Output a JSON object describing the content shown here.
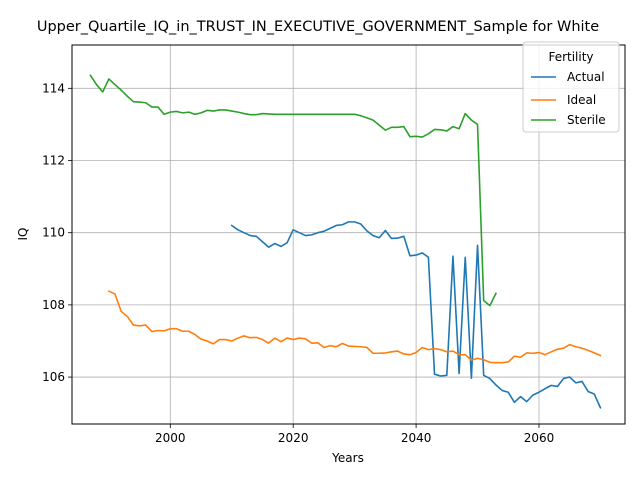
{
  "chart_data": {
    "type": "line",
    "title": "Upper_Quartile_IQ_in_TRUST_IN_EXECUTIVE_GOVERNMENT_Sample for White",
    "xlabel": "Years",
    "ylabel": "IQ",
    "xlim": [
      1984,
      2074
    ],
    "ylim": [
      104.7,
      115.2
    ],
    "xticks": [
      2000,
      2020,
      2040,
      2060
    ],
    "xtick_labels": [
      "2000",
      "2020",
      "2040",
      "2060"
    ],
    "yticks": [
      106,
      108,
      110,
      112,
      114
    ],
    "ytick_labels": [
      "106",
      "108",
      "110",
      "112",
      "114"
    ],
    "grid": true,
    "legend": {
      "title": "Fertility",
      "placement": "top-right",
      "entries": [
        "Actual",
        "Ideal",
        "Sterile"
      ]
    },
    "series": [
      {
        "name": "Actual",
        "color": "#1f77b4",
        "x": [
          2010,
          2011,
          2012,
          2013,
          2014,
          2015,
          2016,
          2017,
          2018,
          2019,
          2020,
          2021,
          2022,
          2023,
          2024,
          2025,
          2026,
          2027,
          2028,
          2029,
          2030,
          2031,
          2032,
          2033,
          2034,
          2035,
          2036,
          2037,
          2038,
          2039,
          2040,
          2041,
          2042,
          2043,
          2044,
          2045,
          2046,
          2047,
          2048,
          2049,
          2050,
          2051,
          2052,
          2053,
          2054,
          2055,
          2056,
          2057,
          2058,
          2059,
          2060,
          2061,
          2062,
          2063,
          2064,
          2065,
          2066,
          2067,
          2068,
          2069,
          2070
        ],
        "y": [
          110.2,
          110.08,
          110.0,
          109.92,
          109.9,
          109.75,
          109.6,
          109.7,
          109.62,
          109.72,
          110.08,
          110.0,
          109.92,
          109.94,
          110.0,
          110.04,
          110.12,
          110.2,
          110.22,
          110.3,
          110.3,
          110.24,
          110.05,
          109.92,
          109.86,
          110.06,
          109.84,
          109.85,
          109.9,
          109.36,
          109.38,
          109.44,
          109.32,
          106.08,
          106.03,
          106.05,
          109.35,
          106.1,
          109.32,
          105.97,
          109.65,
          106.05,
          105.96,
          105.78,
          105.63,
          105.58,
          105.3,
          105.46,
          105.32,
          105.5,
          105.58,
          105.68,
          105.77,
          105.74,
          105.96,
          106.0,
          105.84,
          105.88,
          105.6,
          105.53,
          105.15
        ]
      },
      {
        "name": "Ideal",
        "color": "#ff7f0e",
        "x": [
          1990,
          1991,
          1992,
          1993,
          1994,
          1995,
          1996,
          1997,
          1998,
          1999,
          2000,
          2001,
          2002,
          2003,
          2004,
          2005,
          2006,
          2007,
          2008,
          2009,
          2010,
          2011,
          2012,
          2013,
          2014,
          2015,
          2016,
          2017,
          2018,
          2019,
          2020,
          2021,
          2022,
          2023,
          2024,
          2025,
          2026,
          2027,
          2028,
          2029,
          2030,
          2031,
          2032,
          2033,
          2034,
          2035,
          2036,
          2037,
          2038,
          2039,
          2040,
          2041,
          2042,
          2043,
          2044,
          2045,
          2046,
          2047,
          2048,
          2049,
          2050,
          2051,
          2052,
          2053,
          2054,
          2055,
          2056,
          2057,
          2058,
          2059,
          2060,
          2061,
          2062,
          2063,
          2064,
          2065,
          2066,
          2067,
          2068,
          2069,
          2070
        ],
        "y": [
          108.38,
          108.3,
          107.82,
          107.68,
          107.44,
          107.42,
          107.44,
          107.26,
          107.29,
          107.28,
          107.34,
          107.34,
          107.27,
          107.27,
          107.18,
          107.05,
          107.0,
          106.92,
          107.04,
          107.04,
          107.0,
          107.08,
          107.14,
          107.09,
          107.1,
          107.04,
          106.94,
          107.08,
          106.98,
          107.08,
          107.04,
          107.08,
          107.06,
          106.94,
          106.95,
          106.82,
          106.87,
          106.84,
          106.93,
          106.86,
          106.85,
          106.84,
          106.82,
          106.66,
          106.66,
          106.67,
          106.7,
          106.72,
          106.64,
          106.62,
          106.68,
          106.82,
          106.76,
          106.79,
          106.76,
          106.7,
          106.72,
          106.62,
          106.62,
          106.47,
          106.52,
          106.48,
          106.41,
          106.4,
          106.4,
          106.42,
          106.58,
          106.55,
          106.67,
          106.66,
          106.68,
          106.62,
          106.7,
          106.77,
          106.8,
          106.9,
          106.84,
          106.8,
          106.74,
          106.67,
          106.6
        ]
      },
      {
        "name": "Sterile",
        "color": "#2ca02c",
        "x": [
          1987,
          1988,
          1989,
          1990,
          1991,
          1992,
          1993,
          1994,
          1995,
          1996,
          1997,
          1998,
          1999,
          2000,
          2001,
          2002,
          2003,
          2004,
          2005,
          2006,
          2007,
          2008,
          2009,
          2010,
          2011,
          2012,
          2013,
          2014,
          2015,
          2016,
          2017,
          2018,
          2019,
          2020,
          2021,
          2022,
          2023,
          2024,
          2025,
          2026,
          2027,
          2028,
          2029,
          2030,
          2031,
          2032,
          2033,
          2034,
          2035,
          2036,
          2037,
          2038,
          2039,
          2040,
          2041,
          2042,
          2043,
          2044,
          2045,
          2046,
          2047,
          2048,
          2049,
          2050,
          2051,
          2052,
          2053
        ],
        "y": [
          114.36,
          114.1,
          113.9,
          114.26,
          114.1,
          113.95,
          113.78,
          113.63,
          113.62,
          113.6,
          113.48,
          113.48,
          113.28,
          113.34,
          113.36,
          113.32,
          113.34,
          113.28,
          113.32,
          113.39,
          113.37,
          113.4,
          113.4,
          113.37,
          113.34,
          113.3,
          113.27,
          113.27,
          113.3,
          113.29,
          113.28,
          113.28,
          113.28,
          113.28,
          113.28,
          113.28,
          113.28,
          113.28,
          113.28,
          113.28,
          113.28,
          113.28,
          113.28,
          113.28,
          113.24,
          113.18,
          113.12,
          112.98,
          112.84,
          112.92,
          112.92,
          112.94,
          112.66,
          112.67,
          112.65,
          112.74,
          112.86,
          112.85,
          112.82,
          112.94,
          112.88,
          113.3,
          113.12,
          113.0,
          108.12,
          107.98,
          108.32
        ]
      }
    ]
  }
}
